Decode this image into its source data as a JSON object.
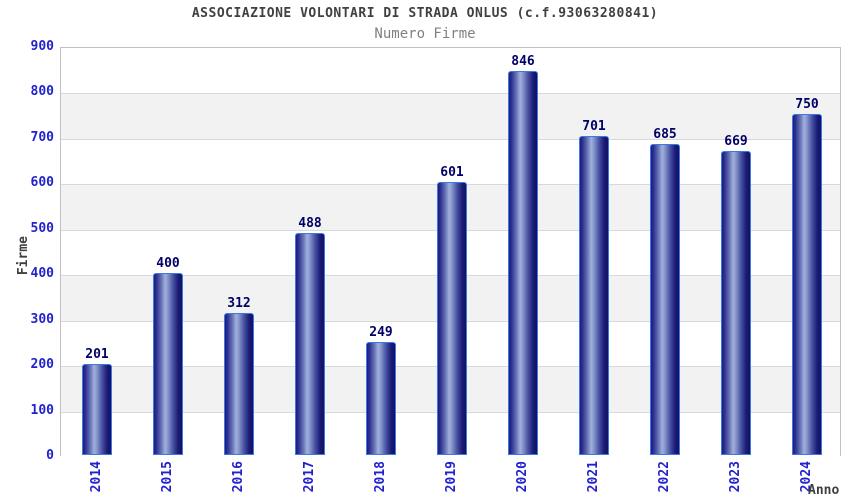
{
  "header": {
    "title": "ASSOCIAZIONE VOLONTARI DI STRADA ONLUS (c.f.93063280841)",
    "subtitle": "Numero Firme"
  },
  "chart_data": {
    "type": "bar",
    "title": "ASSOCIAZIONE VOLONTARI DI STRADA ONLUS (c.f.93063280841)",
    "subtitle": "Numero Firme",
    "categories": [
      "2014",
      "2015",
      "2016",
      "2017",
      "2018",
      "2019",
      "2020",
      "2021",
      "2022",
      "2023",
      "2024"
    ],
    "values": [
      201,
      400,
      312,
      488,
      249,
      601,
      846,
      701,
      685,
      669,
      750
    ],
    "xlabel": "Anno",
    "ylabel": "Firme",
    "ylim": [
      0,
      900
    ],
    "y_ticks": [
      0,
      100,
      200,
      300,
      400,
      500,
      600,
      700,
      800,
      900
    ],
    "grid": true,
    "legend": "none",
    "colors": {
      "bar_dark": "#1d1d80",
      "bar_highlight": "#a2b0dc",
      "bar_border": "#3b78e8",
      "tick_label": "#2222cc",
      "value_label": "#000066",
      "band_gray": "#f2f2f2",
      "grid_line": "#d9d9d9",
      "title_text": "#404040",
      "subtitle_text": "#808080"
    }
  }
}
